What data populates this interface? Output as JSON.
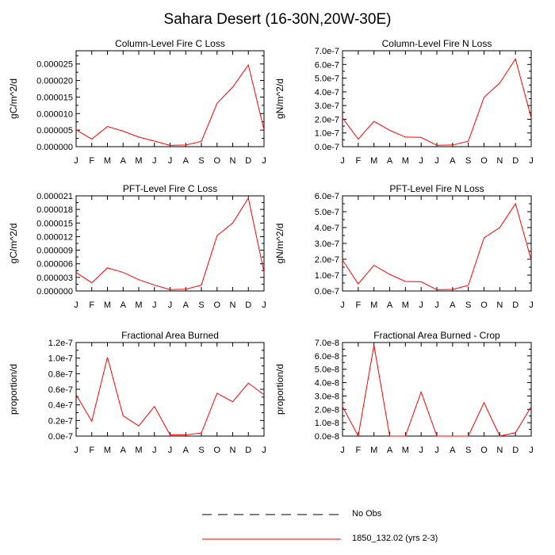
{
  "figure": {
    "title": "Sahara Desert (16-30N,20W-30E)"
  },
  "legend": {
    "entries": [
      {
        "label": "No Obs",
        "style": "dashed",
        "color": "#000000"
      },
      {
        "label": "1850_132.02 (yrs 2-3)",
        "style": "solid",
        "color": "#ff0000"
      }
    ]
  },
  "chart_data": [
    {
      "type": "line",
      "title": "Column-Level Fire C Loss",
      "ylabel": "gC/m^2/d",
      "categories": [
        "J",
        "F",
        "M",
        "A",
        "M",
        "J",
        "J",
        "A",
        "S",
        "O",
        "N",
        "D",
        "J"
      ],
      "ylim": [
        0,
        2.9e-05
      ],
      "yticks": [
        0,
        5e-06,
        1e-05,
        1.5e-05,
        2e-05,
        2.5e-05
      ],
      "ytick_labels": [
        "0.000000",
        "0.000005",
        "0.000010",
        "0.000015",
        "0.000020",
        "0.000025"
      ],
      "series": [
        {
          "name": "1850_132.02 (yrs 2-3)",
          "color": "#ff0000",
          "values": [
            5.1e-06,
            2.3e-06,
            6.1e-06,
            4.7e-06,
            2.9e-06,
            1.7e-06,
            4e-07,
            5e-07,
            1.6e-06,
            1.31e-05,
            1.8e-05,
            2.47e-05,
            5.1e-06
          ]
        }
      ]
    },
    {
      "type": "line",
      "title": "Column-Level Fire N Loss",
      "ylabel": "gN/m^2/d",
      "categories": [
        "J",
        "F",
        "M",
        "A",
        "M",
        "J",
        "J",
        "A",
        "S",
        "O",
        "N",
        "D",
        "J"
      ],
      "ylim": [
        0,
        7e-07
      ],
      "yticks": [
        0,
        1e-07,
        2e-07,
        3e-07,
        4e-07,
        5e-07,
        6e-07,
        7e-07
      ],
      "ytick_labels": [
        "0.0e-7",
        "1.0e-7",
        "2.0e-7",
        "3.0e-7",
        "4.0e-7",
        "5.0e-7",
        "6.0e-7",
        "7.0e-7"
      ],
      "series": [
        {
          "name": "1850_132.02 (yrs 2-3)",
          "color": "#ff0000",
          "values": [
            2.1e-07,
            5.5e-08,
            1.85e-07,
            1.2e-07,
            7e-08,
            6.8e-08,
            1e-08,
            1.2e-08,
            4e-08,
            3.6e-07,
            4.65e-07,
            6.4e-07,
            2.1e-07
          ]
        }
      ]
    },
    {
      "type": "line",
      "title": "PFT-Level Fire C Loss",
      "ylabel": "gC/m^2/d",
      "categories": [
        "J",
        "F",
        "M",
        "A",
        "M",
        "J",
        "J",
        "A",
        "S",
        "O",
        "N",
        "D",
        "J"
      ],
      "ylim": [
        0,
        2.1e-05
      ],
      "yticks": [
        0,
        3e-06,
        6e-06,
        9e-06,
        1.2e-05,
        1.5e-05,
        1.8e-05,
        2.1e-05
      ],
      "ytick_labels": [
        "0.000000",
        "0.000003",
        "0.000006",
        "0.000009",
        "0.000012",
        "0.000015",
        "0.000018",
        "0.000021"
      ],
      "series": [
        {
          "name": "1850_132.02 (yrs 2-3)",
          "color": "#ff0000",
          "values": [
            4.1e-06,
            1.8e-06,
            5.1e-06,
            4.1e-06,
            2.5e-06,
            1.3e-06,
            3e-07,
            4e-07,
            1.3e-06,
            1.22e-05,
            1.5e-05,
            2.05e-05,
            4.1e-06
          ]
        }
      ]
    },
    {
      "type": "line",
      "title": "PFT-Level Fire N Loss",
      "ylabel": "gN/m^2/d",
      "categories": [
        "J",
        "F",
        "M",
        "A",
        "M",
        "J",
        "J",
        "A",
        "S",
        "O",
        "N",
        "D",
        "J"
      ],
      "ylim": [
        0,
        6e-07
      ],
      "yticks": [
        0,
        1e-07,
        2e-07,
        3e-07,
        4e-07,
        5e-07,
        6e-07
      ],
      "ytick_labels": [
        "0.0e-7",
        "1.0e-7",
        "2.0e-7",
        "3.0e-7",
        "4.0e-7",
        "5.0e-7",
        "6.0e-7"
      ],
      "series": [
        {
          "name": "1850_132.02 (yrs 2-3)",
          "color": "#ff0000",
          "values": [
            1.95e-07,
            4.5e-08,
            1.62e-07,
            1.05e-07,
            6e-08,
            5.8e-08,
            8e-09,
            1e-08,
            3.5e-08,
            3.35e-07,
            4e-07,
            5.5e-07,
            1.95e-07
          ]
        }
      ]
    },
    {
      "type": "line",
      "title": "Fractional Area Burned",
      "ylabel": "proportion/d",
      "categories": [
        "J",
        "F",
        "M",
        "A",
        "M",
        "J",
        "J",
        "A",
        "S",
        "O",
        "N",
        "D",
        "J"
      ],
      "ylim": [
        0,
        1.2e-07
      ],
      "yticks": [
        0,
        2e-08,
        4e-08,
        6e-08,
        8e-08,
        1e-07,
        1.2e-07
      ],
      "ytick_labels": [
        "0.0e-7",
        "0.2e-7",
        "0.4e-7",
        "0.6e-7",
        "0.8e-7",
        "1.0e-7",
        "1.2e-7"
      ],
      "series": [
        {
          "name": "1850_132.02 (yrs 2-3)",
          "color": "#ff0000",
          "values": [
            5.3e-08,
            1.9e-08,
            1.01e-07,
            2.6e-08,
            1.3e-08,
            3.8e-08,
            1.5e-09,
            1.5e-09,
            4e-09,
            5.5e-08,
            4.4e-08,
            6.8e-08,
            5.3e-08
          ]
        }
      ]
    },
    {
      "type": "line",
      "title": "Fractional Area Burned - Crop",
      "ylabel": "proportion/d",
      "categories": [
        "J",
        "F",
        "M",
        "A",
        "M",
        "J",
        "J",
        "A",
        "S",
        "O",
        "N",
        "D",
        "J"
      ],
      "ylim": [
        0,
        7e-08
      ],
      "yticks": [
        0,
        1e-08,
        2e-08,
        3e-08,
        4e-08,
        5e-08,
        6e-08,
        7e-08
      ],
      "ytick_labels": [
        "0.0e-8",
        "1.0e-8",
        "2.0e-8",
        "3.0e-8",
        "4.0e-8",
        "5.0e-8",
        "6.0e-8",
        "7.0e-8"
      ],
      "series": [
        {
          "name": "1850_132.02 (yrs 2-3)",
          "color": "#ff0000",
          "values": [
            2.2e-08,
            0,
            6.8e-08,
            0,
            0,
            3.3e-08,
            0,
            0,
            0,
            2.5e-08,
            0,
            2.5e-09,
            2.2e-08
          ]
        }
      ]
    }
  ]
}
